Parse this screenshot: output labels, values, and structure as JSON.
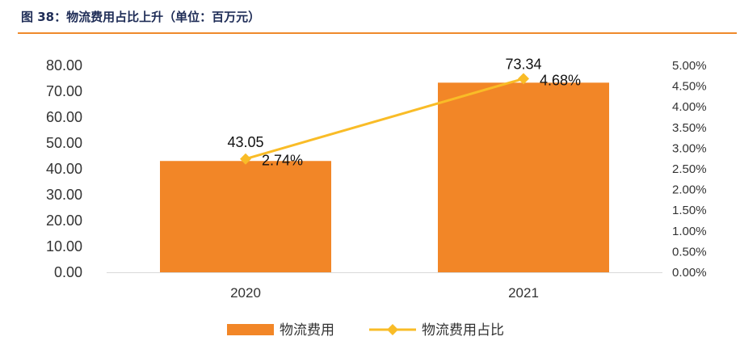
{
  "figure": {
    "title": "图 38：物流费用占比上升（单位：百万元）",
    "accent_color": "#ef8a2b"
  },
  "chart_data": {
    "type": "bar",
    "categories": [
      "2020",
      "2021"
    ],
    "series": [
      {
        "name": "物流费用",
        "type": "bar",
        "axis": "left",
        "values": [
          43.05,
          73.34
        ],
        "labels": [
          "43.05",
          "73.34"
        ],
        "color": "#f28627"
      },
      {
        "name": "物流费用占比",
        "type": "line",
        "axis": "right",
        "values": [
          2.74,
          4.68
        ],
        "labels": [
          "2.74%",
          "4.68%"
        ],
        "color": "#f9bc27"
      }
    ],
    "y_left": {
      "min": 0,
      "max": 80,
      "step": 10,
      "ticks": [
        "0.00",
        "10.00",
        "20.00",
        "30.00",
        "40.00",
        "50.00",
        "60.00",
        "70.00",
        "80.00"
      ]
    },
    "y_right": {
      "min": 0,
      "max": 5,
      "step": 0.5,
      "ticks": [
        "0.00%",
        "0.50%",
        "1.00%",
        "1.50%",
        "2.00%",
        "2.50%",
        "3.00%",
        "3.50%",
        "4.00%",
        "4.50%",
        "5.00%"
      ]
    },
    "grid": false,
    "legend": "bottom-center"
  }
}
